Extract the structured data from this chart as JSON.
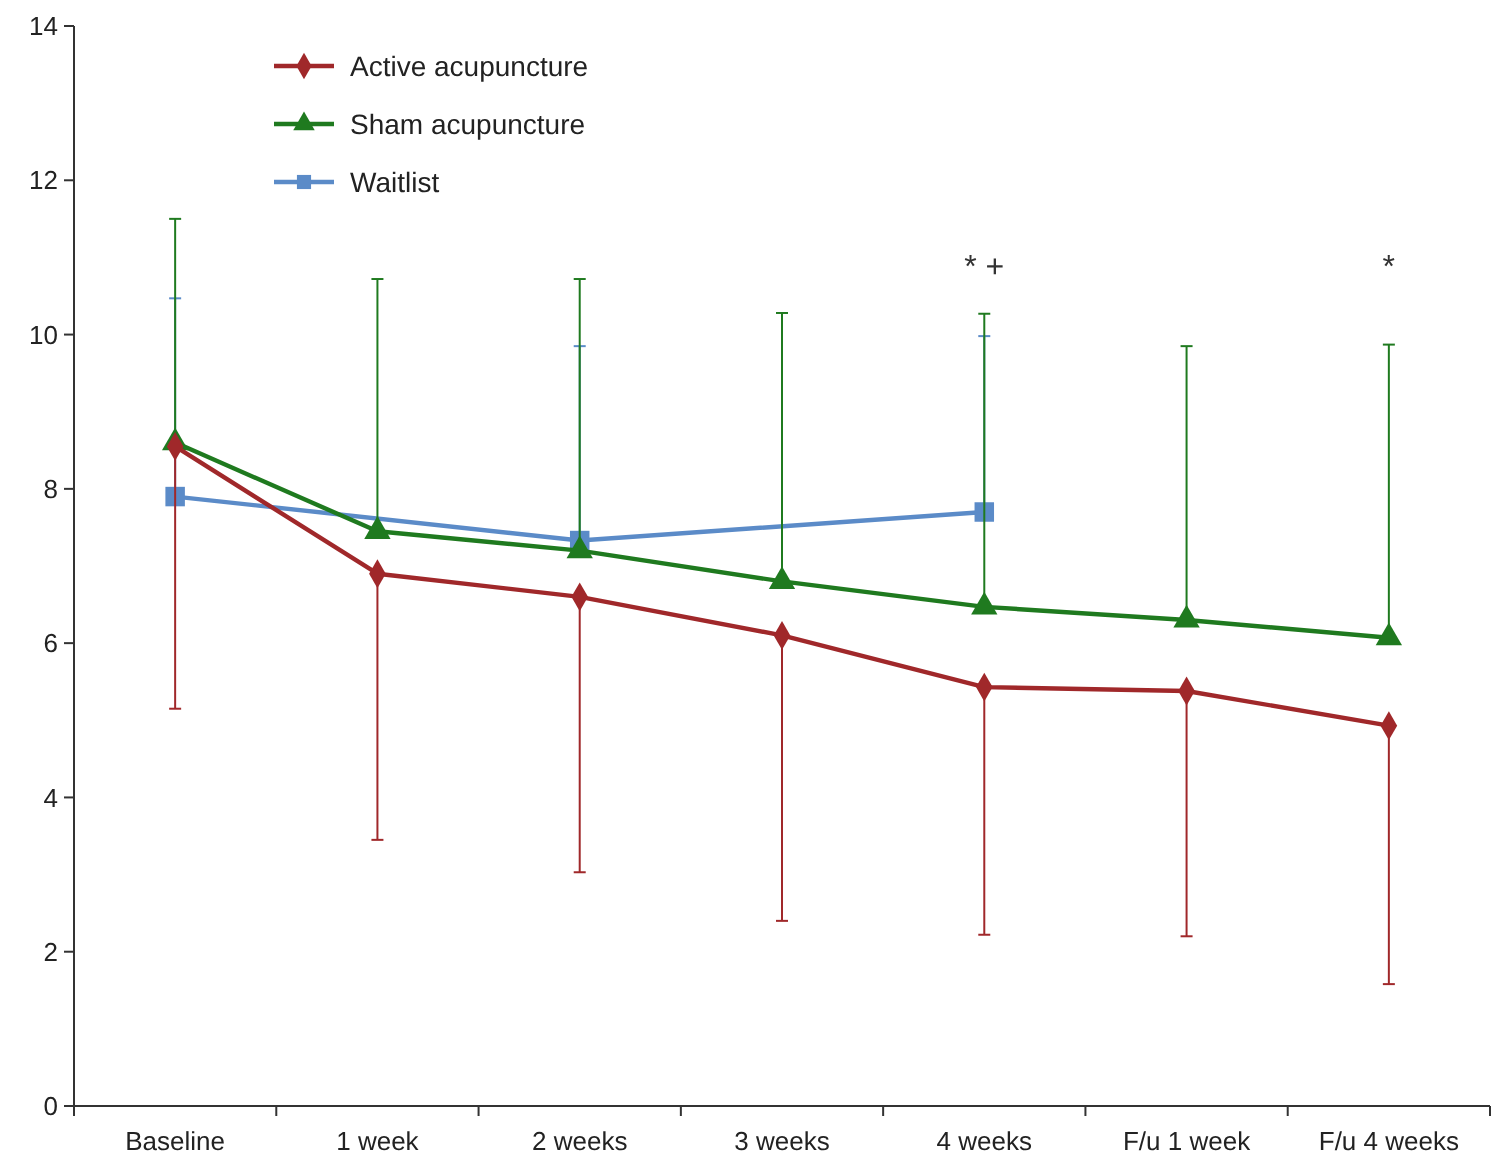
{
  "chart_data": {
    "type": "line",
    "categories": [
      "Baseline",
      "1 week",
      "2 weeks",
      "3 weeks",
      "4 weeks",
      "F/u 1 week",
      "F/u 4 weeks"
    ],
    "ylim": [
      0,
      14
    ],
    "yticks": [
      0,
      2,
      4,
      6,
      8,
      10,
      12,
      14
    ],
    "grid": false,
    "legend": "top left",
    "line_style": "solid",
    "series": [
      {
        "name": "Active acupuncture",
        "color": "#a0282a",
        "marker": "diamond",
        "values": [
          8.55,
          6.9,
          6.6,
          6.1,
          5.43,
          5.38,
          4.93
        ],
        "errors": [
          [
            5.15,
            8.55
          ],
          [
            3.45,
            6.9
          ],
          [
            3.03,
            6.6
          ],
          [
            2.4,
            6.1
          ],
          [
            2.22,
            5.43
          ],
          [
            2.2,
            5.38
          ],
          [
            1.58,
            4.93
          ]
        ]
      },
      {
        "name": "Sham acupuncture",
        "color": "#1f7a1f",
        "marker": "triangle",
        "values": [
          8.6,
          7.45,
          7.2,
          6.8,
          6.47,
          6.3,
          6.07
        ],
        "errors": [
          [
            8.6,
            11.5
          ],
          [
            7.45,
            10.72
          ],
          [
            7.2,
            10.72
          ],
          [
            6.8,
            10.28
          ],
          [
            6.47,
            10.27
          ],
          [
            6.3,
            9.85
          ],
          [
            6.07,
            9.87
          ]
        ]
      },
      {
        "name": "Waitlist",
        "color": "#5b8bc8",
        "marker": "square",
        "values": [
          7.9,
          null,
          7.33,
          null,
          7.7,
          null,
          null
        ],
        "errors": [
          [
            7.9,
            10.47
          ],
          null,
          [
            7.33,
            9.85
          ],
          null,
          [
            7.7,
            9.98
          ],
          null,
          null
        ]
      }
    ],
    "annotations": [
      "* +",
      "*"
    ]
  }
}
